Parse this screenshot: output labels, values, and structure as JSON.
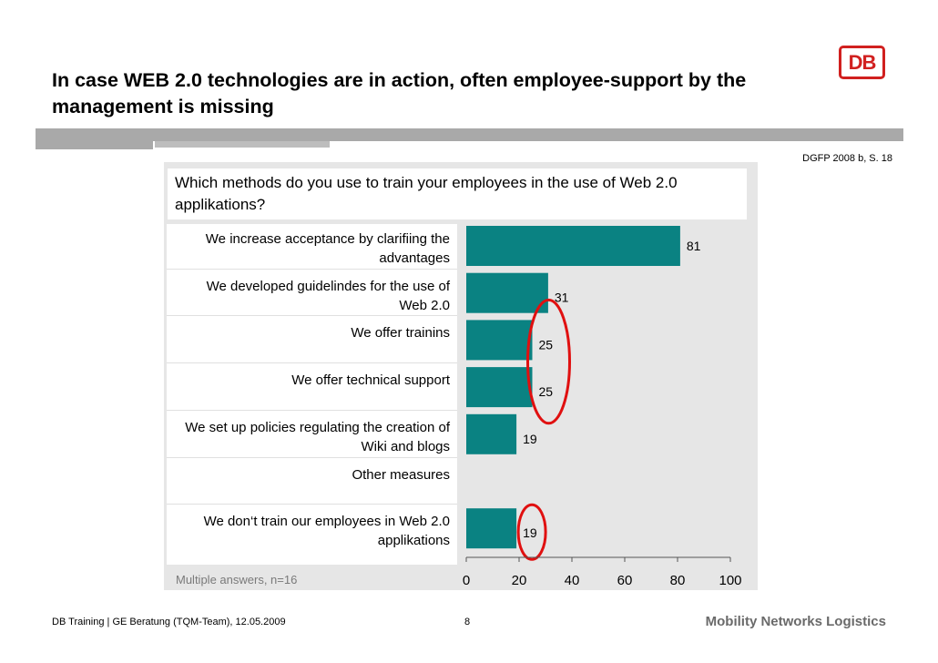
{
  "title": "In case WEB 2.0 technologies are in action, often employee-support by the management is missing",
  "logo_text": "DB",
  "source": "DGFP 2008 b, S. 18",
  "note": "Multiple answers, n=16",
  "footer": {
    "left": "DB Training | GE Beratung (TQM-Team), 12.05.2009",
    "page": "8",
    "right": "Mobility Networks Logistics"
  },
  "colors": {
    "bar": "#0a8282",
    "highlight": "#e01010",
    "brand": "#d1201f"
  },
  "chart_data": {
    "type": "bar",
    "orientation": "horizontal",
    "title": "Which methods do you use to train your employees in the use of Web 2.0 applikations?",
    "categories": [
      "We increase acceptance by clarifiing the advantages",
      "We developed guidelindes for the use of Web 2.0",
      "We offer trainins",
      "We offer technical support",
      "We  set up policies regulating the creation of Wiki and blogs",
      "Other measures",
      "We don‘t train our employees in Web 2.0 applikations"
    ],
    "values": [
      81,
      31,
      25,
      25,
      19,
      null,
      19
    ],
    "value_labels": [
      "81",
      "31",
      "25",
      "25",
      "19",
      "",
      "19"
    ],
    "xlim": [
      0,
      100
    ],
    "xticks": [
      "0",
      "20",
      "40",
      "60",
      "80",
      "100"
    ],
    "highlighted": [
      2,
      3,
      6
    ],
    "grid": false
  }
}
